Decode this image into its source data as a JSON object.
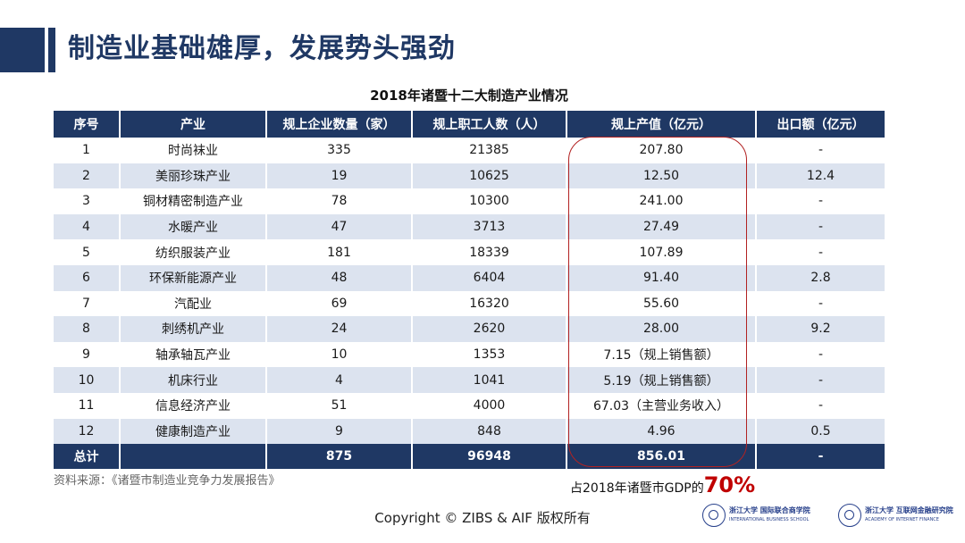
{
  "slide": {
    "title": "制造业基础雄厚，发展势头强劲",
    "table_title": "2018年诸暨十二大制造产业情况"
  },
  "table": {
    "headers": [
      "序号",
      "产业",
      "规上企业数量（家）",
      "规上职工人数（人）",
      "规上产值（亿元）",
      "出口额（亿元）"
    ],
    "rows": [
      [
        "1",
        "时尚袜业",
        "335",
        "21385",
        "207.80",
        "-"
      ],
      [
        "2",
        "美丽珍珠产业",
        "19",
        "10625",
        "12.50",
        "12.4"
      ],
      [
        "3",
        "铜材精密制造产业",
        "78",
        "10300",
        "241.00",
        "-"
      ],
      [
        "4",
        "水暖产业",
        "47",
        "3713",
        "27.49",
        "-"
      ],
      [
        "5",
        "纺织服装产业",
        "181",
        "18339",
        "107.89",
        "-"
      ],
      [
        "6",
        "环保新能源产业",
        "48",
        "6404",
        "91.40",
        "2.8"
      ],
      [
        "7",
        "汽配业",
        "69",
        "16320",
        "55.60",
        "-"
      ],
      [
        "8",
        "刺绣机产业",
        "24",
        "2620",
        "28.00",
        "9.2"
      ],
      [
        "9",
        "轴承轴瓦产业",
        "10",
        "1353",
        "7.15（规上销售额）",
        "-"
      ],
      [
        "10",
        "机床行业",
        "4",
        "1041",
        "5.19（规上销售额）",
        "-"
      ],
      [
        "11",
        "信息经济产业",
        "51",
        "4000",
        "67.03（主营业务收入）",
        "-"
      ],
      [
        "12",
        "健康制造产业",
        "9",
        "848",
        "4.96",
        "0.5"
      ]
    ],
    "total": [
      "总计",
      "875",
      "96948",
      "856.01",
      "-"
    ]
  },
  "notes": {
    "source": "资料来源：《诸暨市制造业竞争力发展报告》",
    "gdp_prefix": "占2018年诸暨市GDP的",
    "gdp_pct": "70%",
    "copyright": "Copyright © ZIBS & AIF 版权所有"
  },
  "logos": {
    "zibs_cn": "浙江大学 国际联合商学院",
    "zibs_en": "INTERNATIONAL BUSINESS SCHOOL",
    "aif_cn": "浙江大学 互联网金融研究院",
    "aif_en": "ACADEMY OF INTERNET FINANCE"
  },
  "colors": {
    "header_bg": "#1f3864",
    "stripe_bg": "#dce3ef",
    "highlight": "#b22222",
    "pct": "#c00000"
  }
}
